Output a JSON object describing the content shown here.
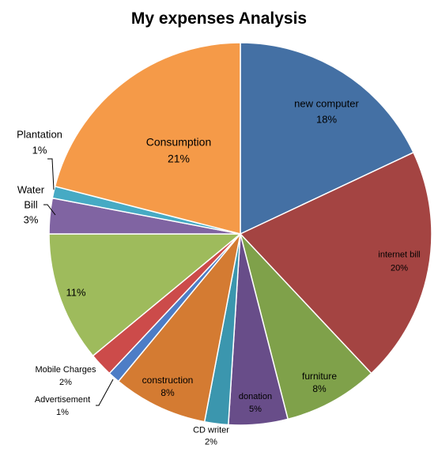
{
  "chart_data": {
    "type": "pie",
    "title": "My expenses Analysis",
    "start_angle_deg": 0,
    "direction": "clockwise",
    "slices": [
      {
        "label": "new computer",
        "value": 18,
        "pct_text": "18%",
        "color": "#4470A4"
      },
      {
        "label": "internet bill",
        "value": 20,
        "pct_text": "20%",
        "color": "#A44442"
      },
      {
        "label": "furniture",
        "value": 8,
        "pct_text": "8%",
        "color": "#7FA14A"
      },
      {
        "label": "donation",
        "value": 5,
        "pct_text": "5%",
        "color": "#684D89"
      },
      {
        "label": "CD writer",
        "value": 2,
        "pct_text": "2%",
        "color": "#3B96AE"
      },
      {
        "label": "construction",
        "value": 8,
        "pct_text": "8%",
        "color": "#D47B32"
      },
      {
        "label": "Advertisement",
        "value": 1,
        "pct_text": "1%",
        "color": "#4D7DC6"
      },
      {
        "label": "Mobile Charges",
        "value": 2,
        "pct_text": "2%",
        "color": "#CC4B4A"
      },
      {
        "label": "",
        "value": 11,
        "pct_text": "11%",
        "color": "#9EBB5C"
      },
      {
        "label": "Water Bill",
        "value": 3,
        "pct_text": "3%",
        "color": "#8064A2"
      },
      {
        "label": "Plantation",
        "value": 1,
        "pct_text": "1%",
        "color": "#46AAC4"
      },
      {
        "label": "Consumption",
        "value": 21,
        "pct_text": "21%",
        "color": "#F59A48"
      }
    ]
  }
}
